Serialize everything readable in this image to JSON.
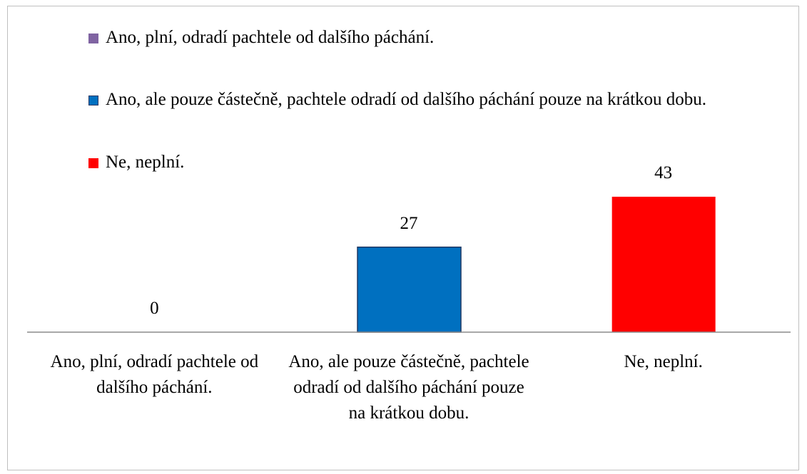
{
  "chart_data": {
    "type": "bar",
    "categories": [
      "Ano, plní, odradí pachtele od dalšího páchání.",
      "Ano, ale pouze částečně, pachtele odradí od dalšího páchání pouze na krátkou dobu.",
      "Ne, neplní."
    ],
    "values": [
      0,
      27,
      43
    ],
    "colors": [
      "#8064a2",
      "#0070c0",
      "#ff0000"
    ],
    "legend": "top-left"
  }
}
